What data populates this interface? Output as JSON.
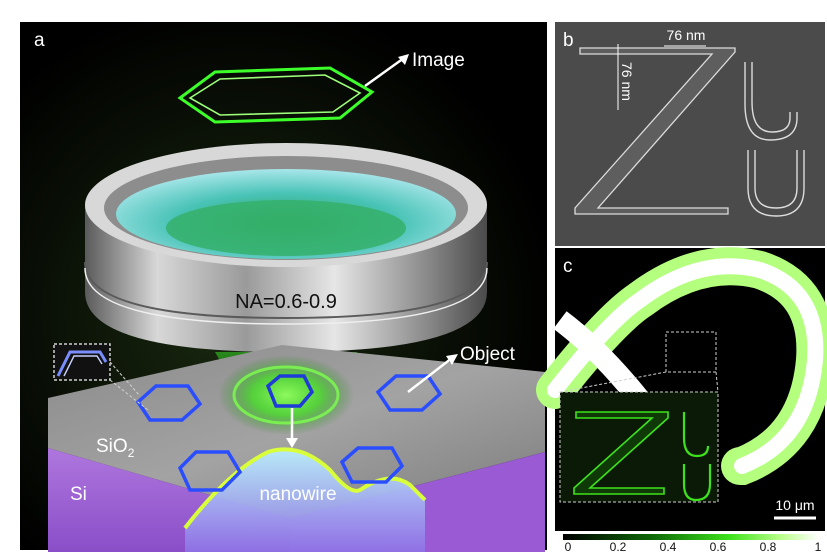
{
  "panel_a": {
    "label": "a",
    "image_label": "Image",
    "object_label": "Object",
    "na_label": "NA=0.6-0.9",
    "substrate_top_label": "SiO",
    "substrate_top_subscript": "2",
    "substrate_bottom_label": "Si",
    "nanowire_label": "nanowire"
  },
  "panel_b": {
    "label": "b",
    "width_annotation": "76 nm",
    "height_annotation": "76 nm"
  },
  "panel_c": {
    "label": "c",
    "scale_bar_label": "10 μm"
  },
  "colorbar": {
    "ticks": [
      "0",
      "0.2",
      "0.4",
      "0.6",
      "0.8",
      "1"
    ]
  },
  "colors": {
    "background": "#000000",
    "green": "#39ff14",
    "blue_hexagon": "#2a4dff",
    "substrate_purple": "#b070e0",
    "silver_lens": "#c8c8c8"
  }
}
